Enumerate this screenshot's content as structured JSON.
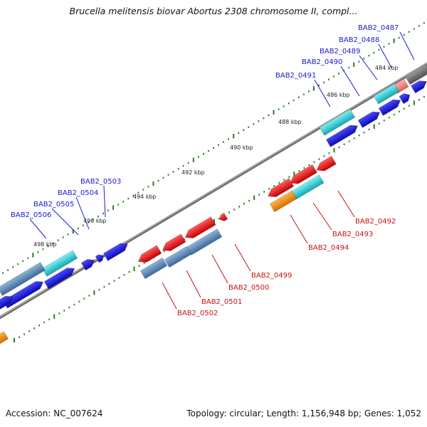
{
  "title": "Brucella melitensis biovar Abortus 2308 chromosome II, compl...",
  "footer": {
    "accession": "Accession: NC_007624",
    "summary": "Topology: circular; Length: 1,156,948 bp; Genes: 1,052"
  },
  "colors": {
    "backbone": "#7f7f7f",
    "tick": "#2a7a1e",
    "forward_label": "#1a1acd",
    "reverse_label": "#cc1111",
    "blue": "#1010dd",
    "steelblue": "#4a7fb5",
    "cyan": "#20c8d0",
    "red": "#ee1010",
    "orange": "#f58a00",
    "pink": "#f07a7a",
    "gray": "#6a6a6a"
  },
  "kbp_labels": [
    "484 kbp",
    "486 kbp",
    "488 kbp",
    "490 kbp",
    "492 kbp",
    "494 kbp",
    "496 kbp",
    "498 kbp"
  ],
  "forward_genes": [
    "BAB2_0487",
    "BAB2_0488",
    "BAB2_0489",
    "BAB2_0490",
    "BAB2_0491",
    "BAB2_0503",
    "BAB2_0504",
    "BAB2_0505",
    "BAB2_0506"
  ],
  "reverse_genes": [
    "BAB2_0492",
    "BAB2_0493",
    "BAB2_0494",
    "BAB2_0499",
    "BAB2_0500",
    "BAB2_0501",
    "BAB2_0502"
  ]
}
